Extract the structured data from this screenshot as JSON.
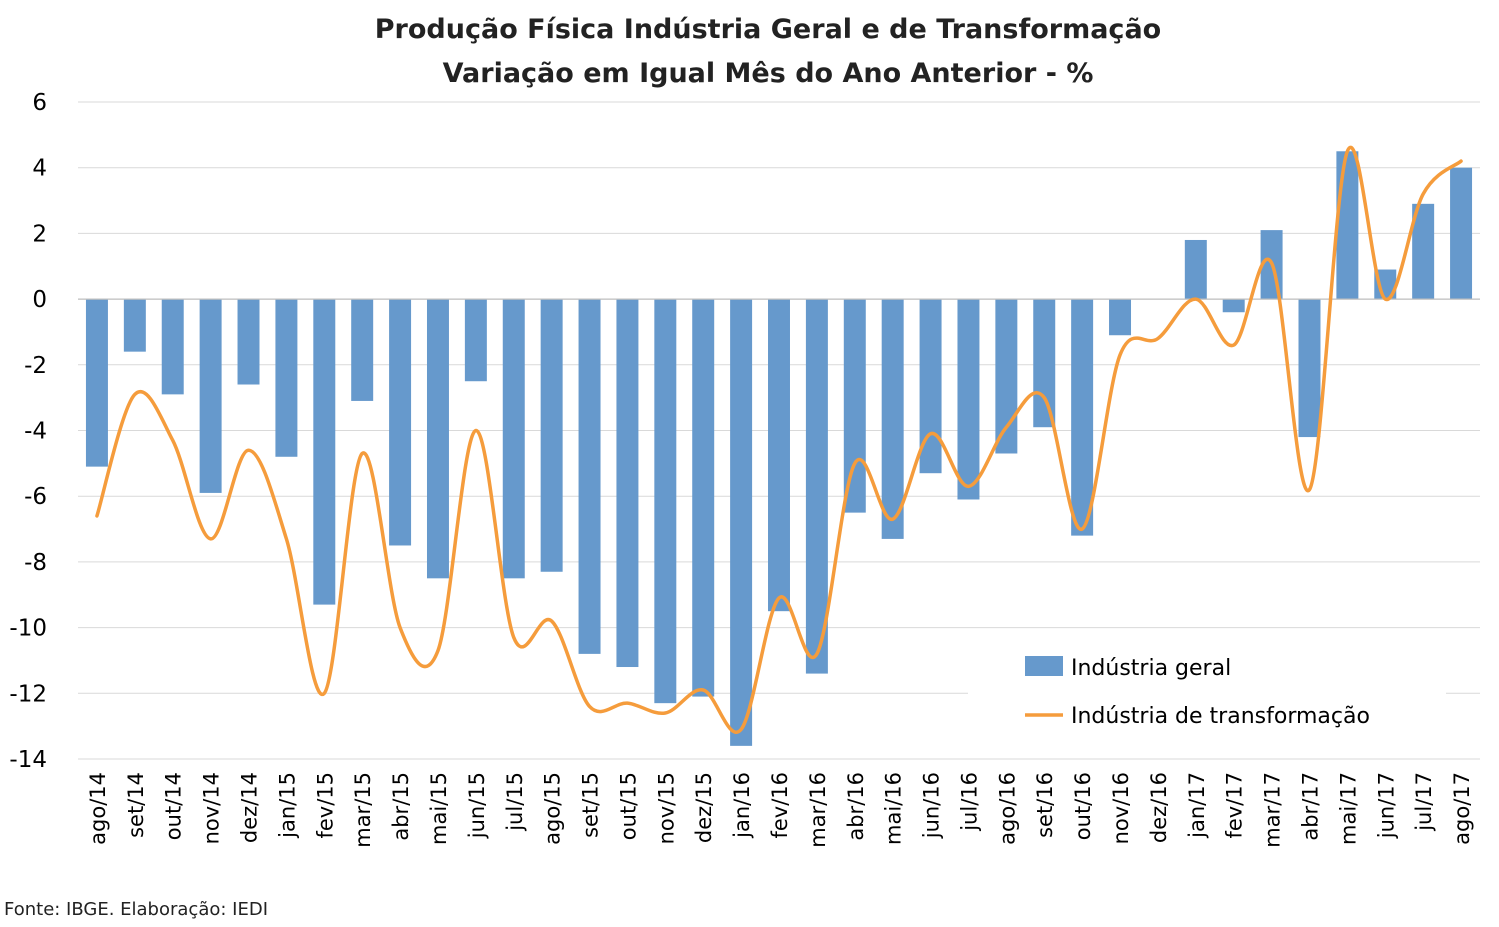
{
  "chart_data": {
    "type": "bar",
    "title": "Produção Física Indústria Geral e de Transformação",
    "subtitle": "Variação em Igual Mês do Ano Anterior - %",
    "xlabel": "",
    "ylabel": "",
    "ylim": [
      -14,
      6
    ],
    "yticks": [
      6,
      4,
      2,
      0,
      -2,
      -4,
      -6,
      -8,
      -10,
      -12,
      -14
    ],
    "ytick_labels": [
      "6",
      "4",
      "2",
      "0",
      "-2",
      "-4",
      "-6",
      "-8",
      "-10",
      "-12",
      "-14"
    ],
    "grid": true,
    "legend_position": "bottom-right",
    "categories": [
      "ago/14",
      "set/14",
      "out/14",
      "nov/14",
      "dez/14",
      "jan/15",
      "fev/15",
      "mar/15",
      "abr/15",
      "mai/15",
      "jun/15",
      "jul/15",
      "ago/15",
      "set/15",
      "out/15",
      "nov/15",
      "dez/15",
      "jan/16",
      "fev/16",
      "mar/16",
      "abr/16",
      "mai/16",
      "jun/16",
      "jul/16",
      "ago/16",
      "set/16",
      "out/16",
      "nov/16",
      "dez/16",
      "jan/17",
      "fev/17",
      "mar/17",
      "abr/17",
      "mai/17",
      "jun/17",
      "jul/17",
      "ago/17"
    ],
    "series": [
      {
        "name": "Indústria geral",
        "type": "bar",
        "color": "#6699CC",
        "values": [
          -5.1,
          -1.6,
          -2.9,
          -5.9,
          -2.6,
          -4.8,
          -9.3,
          -3.1,
          -7.5,
          -8.5,
          -2.5,
          -8.5,
          -8.3,
          -10.8,
          -11.2,
          -12.3,
          -12.1,
          -13.6,
          -9.5,
          -11.4,
          -6.5,
          -7.3,
          -5.3,
          -6.1,
          -4.7,
          -3.9,
          -7.2,
          -1.1,
          0.0,
          1.8,
          -0.4,
          2.1,
          -4.2,
          4.5,
          0.9,
          2.9,
          4.0
        ]
      },
      {
        "name": "Indústria de transformação",
        "type": "line",
        "color": "#F59C3C",
        "values": [
          -6.6,
          -2.9,
          -4.3,
          -7.3,
          -4.6,
          -7.3,
          -12.0,
          -4.7,
          -10.0,
          -10.7,
          -4.0,
          -10.3,
          -9.8,
          -12.4,
          -12.3,
          -12.6,
          -11.9,
          -13.1,
          -9.1,
          -10.8,
          -5.0,
          -6.7,
          -4.1,
          -5.7,
          -3.9,
          -3.0,
          -7.0,
          -1.7,
          -1.2,
          0.0,
          -1.4,
          1.1,
          -5.8,
          4.5,
          0.0,
          3.2,
          4.2
        ]
      }
    ]
  },
  "source": "Fonte: IBGE. Elaboração: IEDI"
}
